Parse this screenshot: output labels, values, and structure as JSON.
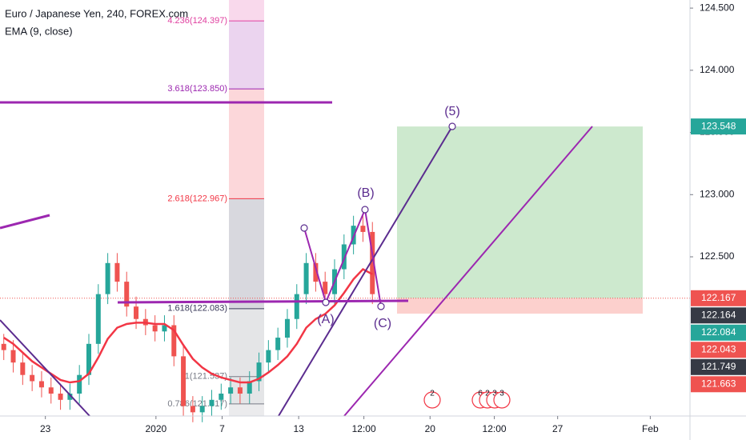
{
  "chart_data": {
    "type": "candlestick",
    "title": "Euro / Japanese Yen, 240, FOREX.com",
    "subtitle": "EMA (9, close)",
    "x": [
      0,
      1,
      2,
      3,
      4,
      5,
      6,
      7,
      8,
      9,
      10,
      11,
      12,
      13,
      14,
      15,
      16,
      17,
      18,
      19,
      20,
      21,
      22,
      23,
      24,
      25,
      26,
      27,
      28,
      29,
      30,
      31,
      32,
      33,
      34,
      35,
      36,
      37,
      38,
      39
    ],
    "open": [
      121.8,
      121.75,
      121.65,
      121.55,
      121.5,
      121.45,
      121.4,
      121.35,
      121.4,
      121.55,
      121.8,
      122.2,
      122.45,
      122.3,
      122.1,
      122.0,
      121.95,
      121.9,
      121.95,
      121.7,
      121.3,
      121.25,
      121.3,
      121.35,
      121.4,
      121.45,
      121.4,
      121.5,
      121.65,
      121.75,
      121.85,
      122.0,
      122.2,
      122.45,
      122.3,
      122.2,
      122.4,
      122.6,
      122.75,
      122.7
    ],
    "high": [
      121.88,
      121.83,
      121.73,
      121.63,
      121.58,
      121.53,
      121.48,
      121.48,
      121.63,
      121.88,
      122.28,
      122.53,
      122.53,
      122.38,
      122.18,
      122.08,
      122.03,
      122.03,
      122.03,
      121.78,
      121.38,
      121.38,
      121.43,
      121.48,
      121.53,
      121.53,
      121.58,
      121.73,
      121.83,
      121.93,
      122.08,
      122.28,
      122.53,
      122.53,
      122.38,
      122.48,
      122.68,
      122.83,
      122.83,
      122.78
    ],
    "low": [
      121.67,
      121.57,
      121.47,
      121.42,
      121.37,
      121.32,
      121.27,
      121.27,
      121.32,
      121.47,
      121.72,
      122.12,
      122.22,
      122.02,
      121.92,
      121.87,
      121.82,
      121.82,
      121.62,
      121.22,
      121.17,
      121.17,
      121.22,
      121.27,
      121.32,
      121.32,
      121.32,
      121.42,
      121.57,
      121.67,
      121.77,
      121.92,
      122.12,
      122.22,
      122.12,
      122.12,
      122.32,
      122.52,
      122.62,
      122.12
    ],
    "close": [
      121.75,
      121.65,
      121.55,
      121.5,
      121.45,
      121.4,
      121.35,
      121.4,
      121.55,
      121.8,
      122.2,
      122.45,
      122.3,
      122.1,
      122.0,
      121.95,
      121.9,
      121.95,
      121.7,
      121.3,
      121.25,
      121.3,
      121.35,
      121.4,
      121.45,
      121.4,
      121.5,
      121.65,
      121.75,
      121.85,
      122.0,
      122.2,
      122.45,
      122.3,
      122.2,
      122.4,
      122.6,
      122.75,
      122.7,
      122.2
    ],
    "up_color": "#26a69a",
    "down_color": "#ef5350",
    "ema": {
      "color": "#f23645",
      "values": [
        121.85,
        121.8,
        121.73,
        121.66,
        121.61,
        121.56,
        121.51,
        121.49,
        121.5,
        121.56,
        121.69,
        121.84,
        121.93,
        121.96,
        121.97,
        121.97,
        121.96,
        121.96,
        121.91,
        121.79,
        121.68,
        121.61,
        121.56,
        121.53,
        121.51,
        121.49,
        121.49,
        121.52,
        121.57,
        121.63,
        121.7,
        121.8,
        121.93,
        122.0,
        122.04,
        122.11,
        122.21,
        122.32,
        122.4,
        122.36
      ]
    },
    "xlim": [
      -0.4,
      72.6
    ],
    "xticks": [
      {
        "value": 4.4,
        "label": "23"
      },
      {
        "value": 16.1,
        "label": "2020"
      },
      {
        "value": 23.1,
        "label": "7"
      },
      {
        "value": 31.2,
        "label": "13"
      },
      {
        "value": 38.1,
        "label": "12:00"
      },
      {
        "value": 45.1,
        "label": "20"
      },
      {
        "value": 51.9,
        "label": "12:00"
      },
      {
        "value": 58.6,
        "label": "27"
      },
      {
        "value": 68.4,
        "label": "Feb"
      }
    ],
    "ylim": [
      121.22,
      124.565
    ],
    "yticks": [
      {
        "value": 124.5,
        "label": "124.500"
      },
      {
        "value": 124.0,
        "label": "124.000"
      },
      {
        "value": 123.5,
        "label": "123.500"
      },
      {
        "value": 123.0,
        "label": "123.000"
      },
      {
        "value": 122.5,
        "label": "122.500"
      }
    ],
    "price_tags": [
      123.548,
      122.167,
      122.164,
      122.084,
      122.043,
      121.749,
      121.663
    ],
    "price_tag_colors": [
      "#26a69a",
      "#ef5350",
      "#363a45",
      "#26a69a",
      "#ef5350",
      "#363a45",
      "#ef5350"
    ],
    "fib_levels": [
      {
        "value": 124.397,
        "label": "4.236(124.397)",
        "color": "#e040a0"
      },
      {
        "value": 123.85,
        "label": "3.618(123.850)",
        "color": "#9c27b0"
      },
      {
        "value": 122.967,
        "label": "2.618(122.967)",
        "color": "#f23645"
      },
      {
        "value": 122.083,
        "label": "1.618(122.083)",
        "color": "#3a3a5a"
      },
      {
        "value": 121.537,
        "label": "1(121.537)",
        "color": "#787b86"
      },
      {
        "value": 121.317,
        "label": "0.786(121.317)",
        "color": "#787b86"
      }
    ],
    "annotations": [
      "(5)",
      "(B)",
      "(A)",
      "(C)"
    ],
    "events": [
      "2",
      "6",
      "2",
      "3",
      "3"
    ]
  }
}
